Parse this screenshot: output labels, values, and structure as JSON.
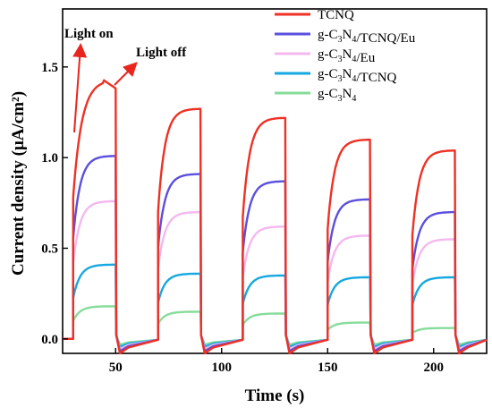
{
  "chart_data": {
    "type": "line",
    "title": "",
    "xlabel": "Time (s)",
    "ylabel": "Current density (μA/cm²)",
    "xlim": [
      25,
      225
    ],
    "ylim": [
      -0.08,
      1.82
    ],
    "xticks": [
      50,
      100,
      150,
      200
    ],
    "yticks": [
      0.0,
      0.5,
      1.0,
      1.5
    ],
    "grid": false,
    "legend_position": "top-right",
    "on_times": [
      30,
      70,
      110,
      150,
      190
    ],
    "off_times": [
      50,
      90,
      130,
      170,
      210
    ],
    "series": [
      {
        "name": "TCNQ",
        "color": "#ee3124",
        "plateau": [
          1.42,
          1.27,
          1.22,
          1.1,
          1.04
        ]
      },
      {
        "name": "g-C3N4/TCNQ/Eu",
        "color": "#5b4fdd",
        "plateau": [
          1.01,
          0.91,
          0.87,
          0.77,
          0.7
        ]
      },
      {
        "name": "g-C3N4/Eu",
        "color": "#f4b8ef",
        "plateau": [
          0.76,
          0.7,
          0.62,
          0.57,
          0.55
        ]
      },
      {
        "name": "g-C3N4/TCNQ",
        "color": "#16a8e0",
        "plateau": [
          0.41,
          0.36,
          0.35,
          0.34,
          0.34
        ]
      },
      {
        "name": "g-C3N4",
        "color": "#86dc9a",
        "plateau": [
          0.18,
          0.15,
          0.14,
          0.09,
          0.06
        ]
      }
    ],
    "annotations": [
      {
        "text": "Light on",
        "x": 30,
        "y": 1.42
      },
      {
        "text": "Light off",
        "x": 50,
        "y": 1.38
      }
    ]
  }
}
